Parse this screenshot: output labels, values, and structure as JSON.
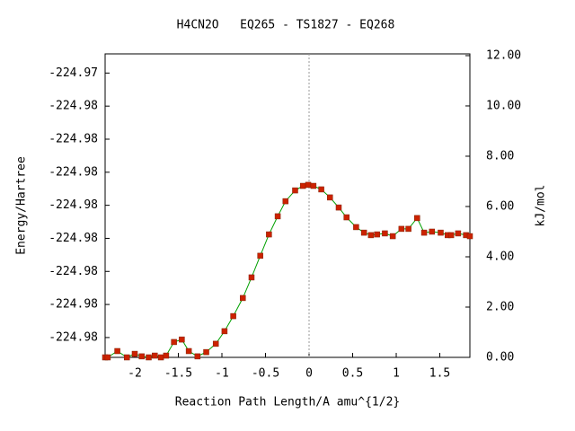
{
  "chart_data": {
    "type": "line",
    "title": "H4CN2O   EQ265 - TS1827 - EQ268",
    "x_label": "Reaction Path Length/A amu^{1/2}",
    "y_label": "Energy/Hartree",
    "y2_label": "kJ/mol",
    "xlim": [
      -2.34,
      1.845
    ],
    "xticks": [
      -2,
      -1.5,
      -1,
      -0.5,
      0,
      0.5,
      1,
      1.5
    ],
    "ylim": [
      -224.9803,
      -224.97571
    ],
    "yticks": [
      {
        "value": -224.98,
        "label": "-224.98"
      },
      {
        "value": -224.9795,
        "label": "-224.98"
      },
      {
        "value": -224.979,
        "label": "-224.98"
      },
      {
        "value": -224.9785,
        "label": "-224.98"
      },
      {
        "value": -224.978,
        "label": "-224.98"
      },
      {
        "value": -224.9775,
        "label": "-224.98"
      },
      {
        "value": -224.977,
        "label": "-224.98"
      },
      {
        "value": -224.9765,
        "label": "-224.98"
      },
      {
        "value": -224.976,
        "label": "-224.97"
      }
    ],
    "y2lim": [
      0,
      12.07
    ],
    "y2ticks": [
      {
        "value": 0,
        "label": "0.00"
      },
      {
        "value": 2,
        "label": "2.00"
      },
      {
        "value": 4,
        "label": "4.00"
      },
      {
        "value": 6,
        "label": "6.00"
      },
      {
        "value": 8,
        "label": "8.00"
      },
      {
        "value": 10,
        "label": "10.00"
      },
      {
        "value": 12,
        "label": "12.00"
      }
    ],
    "vline_x": 0,
    "x": [
      -2.34,
      -2.31,
      -2.2,
      -2.09,
      -2.0,
      -1.92,
      -1.84,
      -1.77,
      -1.7,
      -1.64,
      -1.55,
      -1.46,
      -1.38,
      -1.28,
      -1.18,
      -1.07,
      -0.97,
      -0.87,
      -0.76,
      -0.66,
      -0.56,
      -0.46,
      -0.36,
      -0.27,
      -0.16,
      -0.07,
      -0.01,
      0.05,
      0.14,
      0.24,
      0.34,
      0.43,
      0.54,
      0.63,
      0.71,
      0.78,
      0.87,
      0.96,
      1.06,
      1.14,
      1.24,
      1.32,
      1.41,
      1.51,
      1.59,
      1.63,
      1.71,
      1.8,
      1.845
    ],
    "series": [
      {
        "axis": "y2",
        "color": "#00a000",
        "marker_color": "#cc2200",
        "values": [
          0,
          0,
          0.25,
          0,
          0.14,
          0.04,
          0,
          0.07,
          0,
          0.07,
          0.61,
          0.71,
          0.25,
          0.04,
          0.21,
          0.54,
          1.04,
          1.64,
          2.36,
          3.18,
          4.04,
          4.89,
          5.61,
          6.21,
          6.64,
          6.82,
          6.86,
          6.82,
          6.68,
          6.36,
          5.96,
          5.57,
          5.18,
          4.96,
          4.86,
          4.89,
          4.93,
          4.82,
          5.11,
          5.11,
          5.54,
          4.96,
          5.0,
          4.96,
          4.86,
          4.86,
          4.93,
          4.86,
          4.82
        ]
      }
    ]
  }
}
